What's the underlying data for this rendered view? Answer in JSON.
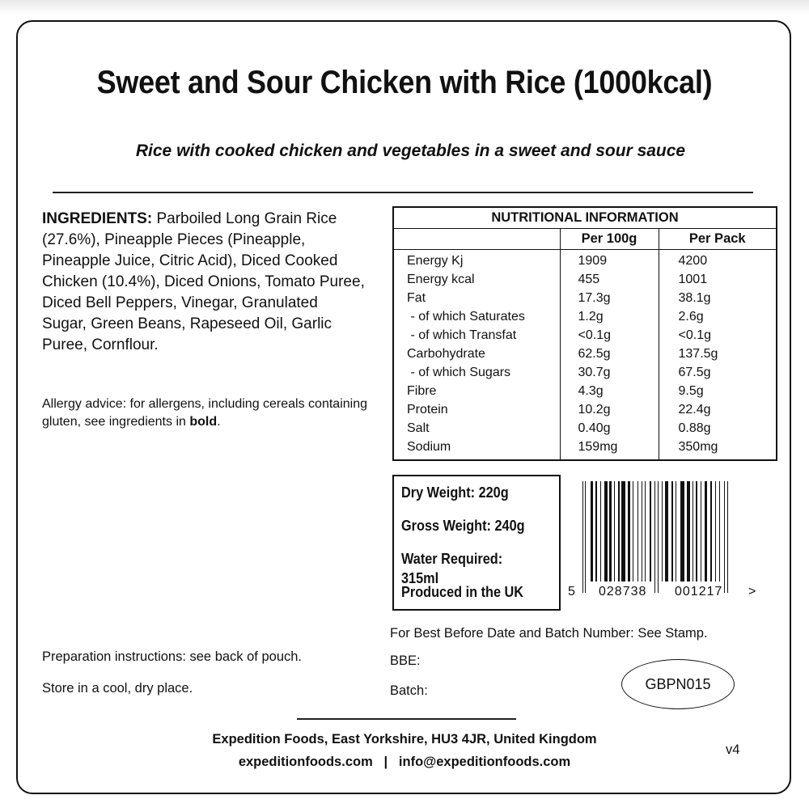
{
  "title": "Sweet and Sour Chicken with Rice (1000kcal)",
  "subtitle": "Rice with cooked chicken and vegetables in a sweet and sour sauce",
  "ingredients": {
    "label": "INGREDIENTS:",
    "text": " Parboiled Long Grain Rice (27.6%), Pineapple Pieces (Pineapple, Pineapple Juice, Citric Acid), Diced Cooked Chicken (10.4%), Diced Onions, Tomato Puree, Diced Bell Peppers, Vinegar, Granulated Sugar, Green Beans, Rapeseed Oil, Garlic Puree, Cornflour."
  },
  "allergy": {
    "text": "Allergy advice: for allergens, including cereals containing gluten, see ingredients in ",
    "bold": "bold",
    "end": "."
  },
  "nutrition": {
    "title": "NUTRITIONAL INFORMATION",
    "columns": [
      "Per 100g",
      "Per Pack"
    ],
    "rows": [
      {
        "label": "Energy Kj",
        "per100": "1909",
        "pack": "4200"
      },
      {
        "label": "Energy kcal",
        "per100": "455",
        "pack": "1001"
      },
      {
        "label": "Fat",
        "per100": "17.3g",
        "pack": "38.1g"
      },
      {
        "label": " - of which Saturates",
        "per100": "1.2g",
        "pack": "2.6g"
      },
      {
        "label": " - of which Transfat",
        "per100": "<0.1g",
        "pack": "<0.1g"
      },
      {
        "label": "Carbohydrate",
        "per100": "62.5g",
        "pack": "137.5g"
      },
      {
        "label": " - of which Sugars",
        "per100": "30.7g",
        "pack": "67.5g"
      },
      {
        "label": "Fibre",
        "per100": "4.3g",
        "pack": "9.5g"
      },
      {
        "label": "Protein",
        "per100": "10.2g",
        "pack": "22.4g"
      },
      {
        "label": "Salt",
        "per100": "0.40g",
        "pack": "0.88g"
      },
      {
        "label": "Sodium",
        "per100": "159mg",
        "pack": "350mg"
      }
    ]
  },
  "weights": [
    "Dry Weight: 220g",
    "Gross Weight: 240g",
    "Water Required: 315ml",
    "Produced in the UK"
  ],
  "barcode": {
    "first": "5",
    "left": "028738",
    "right": "001217",
    "end": ">"
  },
  "best_before": "For Best Before Date and Batch Number: See Stamp.",
  "bbe_label": "BBE:",
  "batch_label": "Batch:",
  "code": "GBPN015",
  "preparation": "Preparation instructions: see back of pouch.",
  "storage": "Store in a cool, dry place.",
  "footer": {
    "address": "Expedition Foods, East Yorkshire, HU3 4JR, United Kingdom",
    "web": "expeditionfoods.com",
    "sep": "|",
    "email": "info@expeditionfoods.com"
  },
  "version": "v4"
}
